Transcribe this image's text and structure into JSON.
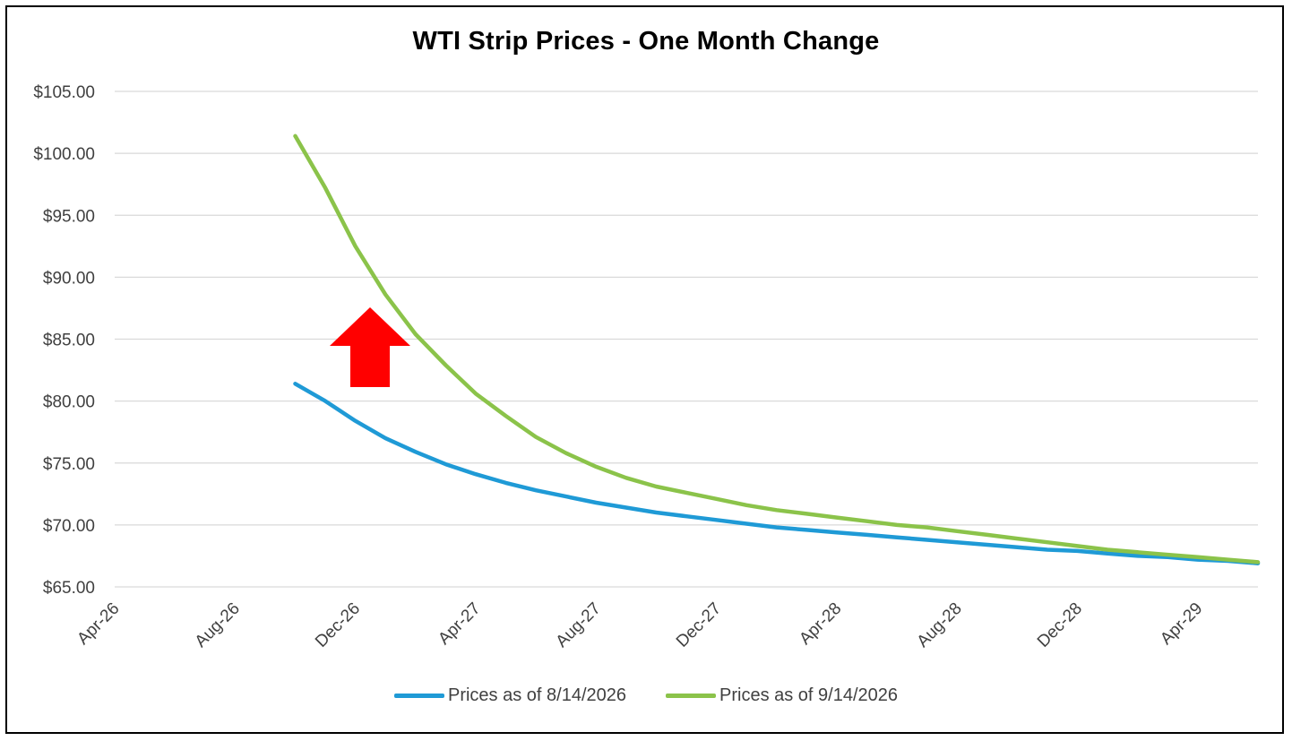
{
  "chart_data": {
    "type": "line",
    "title": "WTI Strip Prices - One Month Change",
    "xlabel": "",
    "ylabel": "",
    "ylim": [
      65,
      105
    ],
    "yticks": [
      105,
      100,
      95,
      90,
      85,
      80,
      75,
      70,
      65
    ],
    "ytick_labels": [
      "$105.00",
      "$100.00",
      "$95.00",
      "$90.00",
      "$85.00",
      "$80.00",
      "$75.00",
      "$70.00",
      "$65.00"
    ],
    "xlim": [
      "2026-04",
      "2029-06"
    ],
    "xticks": [
      "2026-04",
      "2026-08",
      "2026-12",
      "2027-04",
      "2027-08",
      "2027-12",
      "2028-04",
      "2028-08",
      "2028-12",
      "2029-04"
    ],
    "xtick_labels": [
      "Apr-26",
      "Aug-26",
      "Dec-26",
      "Apr-27",
      "Aug-27",
      "Dec-27",
      "Apr-28",
      "Aug-28",
      "Dec-28",
      "Apr-29"
    ],
    "grid": "horizontal",
    "legend_position": "bottom",
    "x": [
      "2026-10",
      "2026-11",
      "2026-12",
      "2027-01",
      "2027-02",
      "2027-03",
      "2027-04",
      "2027-05",
      "2027-06",
      "2027-07",
      "2027-08",
      "2027-09",
      "2027-10",
      "2027-11",
      "2027-12",
      "2028-01",
      "2028-02",
      "2028-03",
      "2028-04",
      "2028-05",
      "2028-06",
      "2028-07",
      "2028-08",
      "2028-09",
      "2028-10",
      "2028-11",
      "2028-12",
      "2029-01",
      "2029-02",
      "2029-03",
      "2029-04",
      "2029-05",
      "2029-06"
    ],
    "series": [
      {
        "name": "Prices as of 8/14/2026",
        "color": "#1f9ad6",
        "values": [
          81.4,
          80.0,
          78.4,
          77.0,
          75.9,
          74.9,
          74.1,
          73.4,
          72.8,
          72.3,
          71.8,
          71.4,
          71.0,
          70.7,
          70.4,
          70.1,
          69.8,
          69.6,
          69.4,
          69.2,
          69.0,
          68.8,
          68.6,
          68.4,
          68.2,
          68.0,
          67.9,
          67.7,
          67.5,
          67.4,
          67.2,
          67.1,
          66.9
        ]
      },
      {
        "name": "Prices as of 9/14/2026",
        "color": "#8bc34a",
        "values": [
          101.4,
          97.2,
          92.5,
          88.6,
          85.4,
          82.9,
          80.6,
          78.8,
          77.1,
          75.8,
          74.7,
          73.8,
          73.1,
          72.6,
          72.1,
          71.6,
          71.2,
          70.9,
          70.6,
          70.3,
          70.0,
          69.8,
          69.5,
          69.2,
          68.9,
          68.6,
          68.3,
          68.0,
          67.8,
          67.6,
          67.4,
          67.2,
          67.0
        ]
      }
    ],
    "annotations": [
      {
        "type": "arrow",
        "direction": "up",
        "color": "#ff0000"
      }
    ]
  }
}
